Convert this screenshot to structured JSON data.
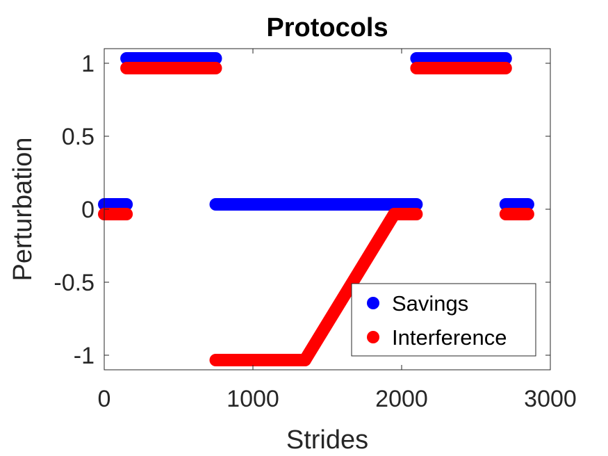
{
  "chart_data": {
    "type": "scatter",
    "title": "Protocols",
    "xlabel": "Strides",
    "ylabel": "Perturbation",
    "xlim": [
      0,
      3000
    ],
    "ylim": [
      -1.1,
      1.1
    ],
    "xticks": [
      0,
      1000,
      2000,
      3000
    ],
    "xtick_labels": [
      "0",
      "1000",
      "2000",
      "3000"
    ],
    "yticks": [
      1,
      0.5,
      0,
      -0.5,
      -1
    ],
    "ytick_labels": [
      "1",
      "0.5",
      "0",
      "-0.5",
      "-1"
    ],
    "grid": false,
    "legend_position": "bottom-right",
    "series": [
      {
        "name": "Savings",
        "color": "#0000ff",
        "segments": [
          {
            "x": [
              0,
              150
            ],
            "y": [
              0,
              0
            ]
          },
          {
            "x": [
              150,
              750
            ],
            "y": [
              1,
              1
            ]
          },
          {
            "x": [
              750,
              2100
            ],
            "y": [
              0,
              0
            ]
          },
          {
            "x": [
              2100,
              2700
            ],
            "y": [
              1,
              1
            ]
          },
          {
            "x": [
              2700,
              2850
            ],
            "y": [
              0,
              0
            ]
          }
        ]
      },
      {
        "name": "Interference",
        "color": "#ff0000",
        "segments": [
          {
            "x": [
              0,
              150
            ],
            "y": [
              0,
              0
            ]
          },
          {
            "x": [
              150,
              750
            ],
            "y": [
              1,
              1
            ]
          },
          {
            "x": [
              750,
              1350
            ],
            "y": [
              -1,
              -1
            ]
          },
          {
            "x": [
              1350,
              1950
            ],
            "y": [
              -1,
              0
            ]
          },
          {
            "x": [
              1950,
              2100
            ],
            "y": [
              0,
              0
            ]
          },
          {
            "x": [
              2100,
              2700
            ],
            "y": [
              1,
              1
            ]
          },
          {
            "x": [
              2700,
              2850
            ],
            "y": [
              0,
              0
            ]
          }
        ]
      }
    ]
  }
}
